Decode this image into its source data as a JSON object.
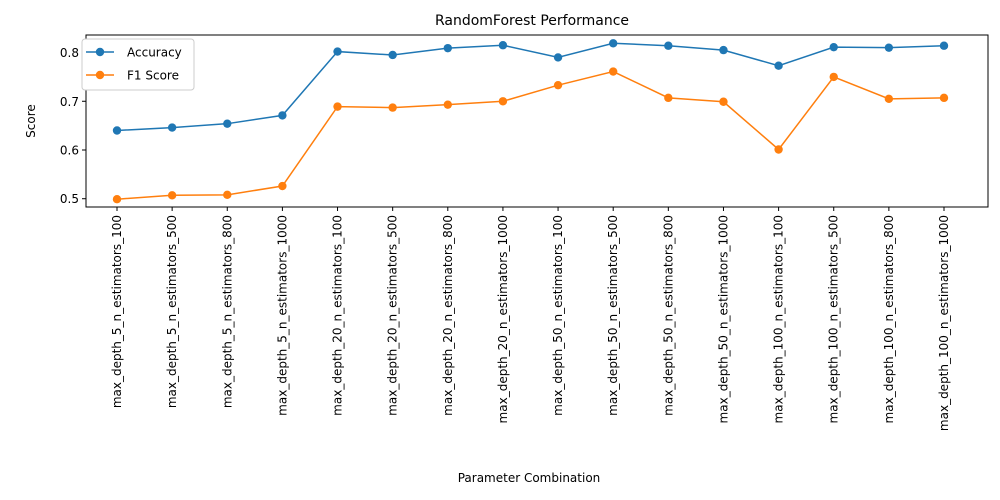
{
  "chart_data": {
    "type": "line",
    "title": "RandomForest Performance",
    "xlabel": "Parameter Combination",
    "ylabel": "Score",
    "categories": [
      "max_depth_5_n_estimators_100",
      "max_depth_5_n_estimators_500",
      "max_depth_5_n_estimators_800",
      "max_depth_5_n_estimators_1000",
      "max_depth_20_n_estimators_100",
      "max_depth_20_n_estimators_500",
      "max_depth_20_n_estimators_800",
      "max_depth_20_n_estimators_1000",
      "max_depth_50_n_estimators_100",
      "max_depth_50_n_estimators_500",
      "max_depth_50_n_estimators_800",
      "max_depth_50_n_estimators_1000",
      "max_depth_100_n_estimators_100",
      "max_depth_100_n_estimators_500",
      "max_depth_100_n_estimators_800",
      "max_depth_100_n_estimators_1000"
    ],
    "series": [
      {
        "name": "Accuracy",
        "color": "#1f77b4",
        "values": [
          0.64,
          0.646,
          0.654,
          0.671,
          0.802,
          0.795,
          0.809,
          0.815,
          0.79,
          0.819,
          0.814,
          0.805,
          0.773,
          0.811,
          0.81,
          0.814
        ]
      },
      {
        "name": "F1 Score",
        "color": "#ff7f0e",
        "values": [
          0.499,
          0.507,
          0.508,
          0.526,
          0.689,
          0.687,
          0.693,
          0.7,
          0.733,
          0.761,
          0.707,
          0.699,
          0.601,
          0.75,
          0.705,
          0.707
        ]
      }
    ],
    "ylim": [
      0.483,
      0.836
    ],
    "yticks": [
      0.5,
      0.6,
      0.7,
      0.8
    ],
    "ytick_labels": [
      "0.5",
      "0.6",
      "0.7",
      "0.8"
    ],
    "grid": false,
    "legend_position": "top-left",
    "markers": "circle"
  }
}
